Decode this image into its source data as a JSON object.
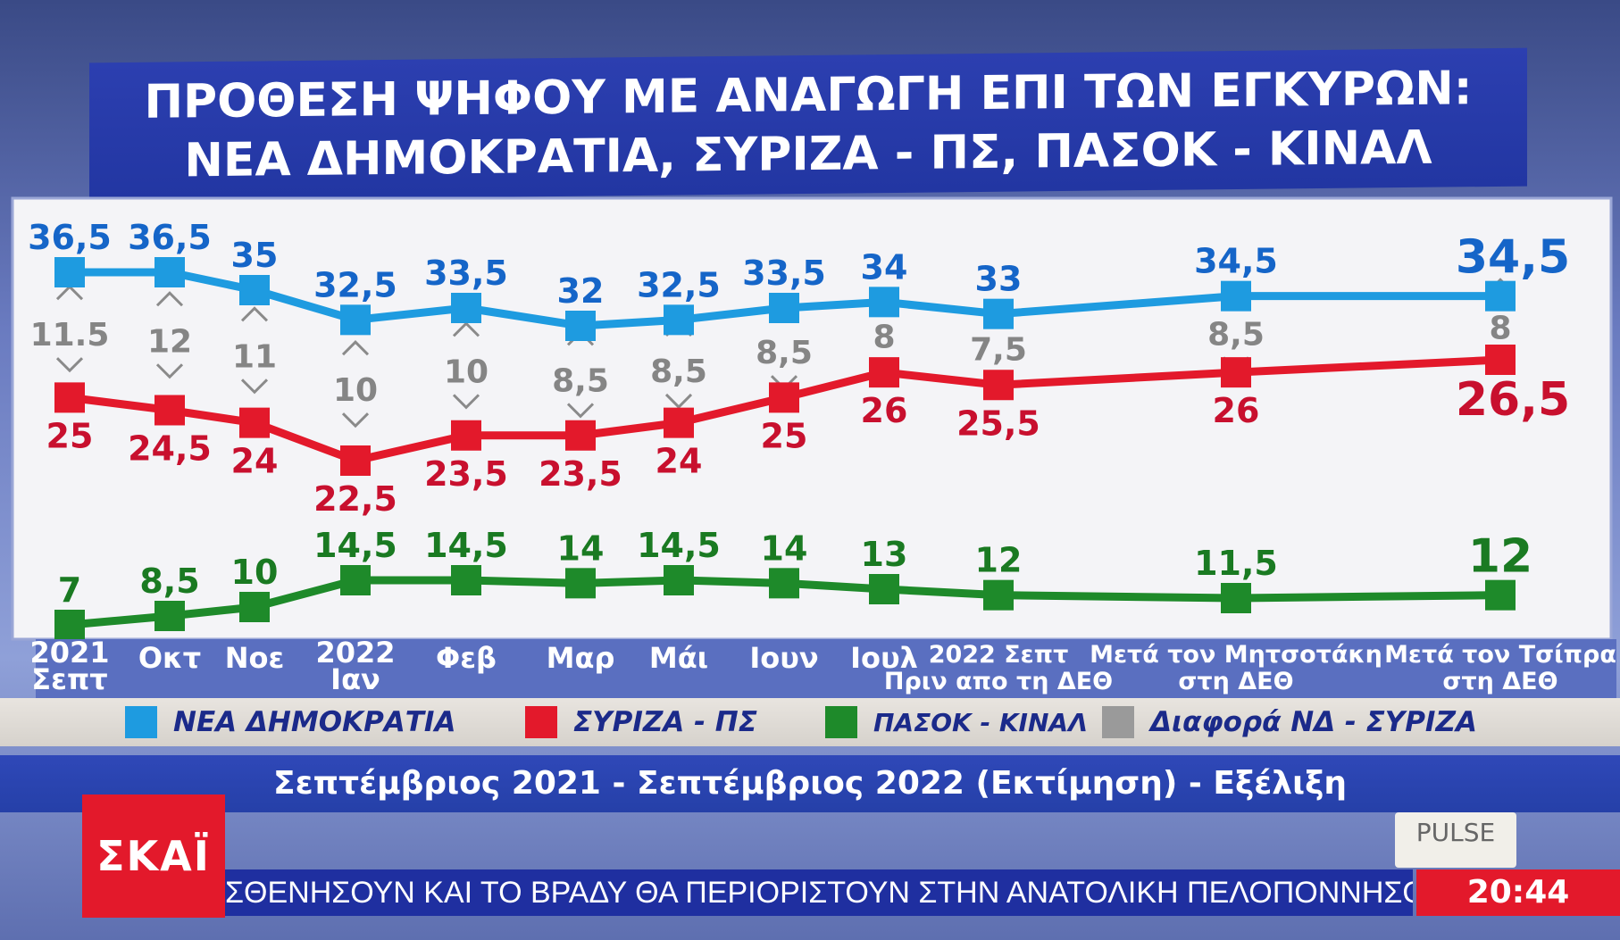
{
  "title": {
    "line1": "ΠΡΟΘΕΣΗ ΨΗΦΟΥ ΜΕ ΑΝΑΓΩΓΗ ΕΠΙ ΤΩΝ ΕΓΚΥΡΩΝ:",
    "line2": "ΝΕΑ ΔΗΜΟΚΡΑΤΙΑ, ΣΥΡΙΖΑ - ΠΣ, ΠΑΣΟΚ - ΚΙΝΑΛ"
  },
  "subtitle": "Σεπτέμβριος 2021 - Σεπτέμβριος 2022 (Εκτίμηση) - Εξέλιξη",
  "broadcast": {
    "logo": "ΣΚΑΪ",
    "pollster": "PULSE",
    "ticker": "ΣΘΕΝΗΣΟΥΝ ΚΑΙ ΤΟ ΒΡΑΔΥ ΘΑ ΠΕΡΙΟΡΙΣΤΟΥΝ ΣΤΗΝ ΑΝΑΤΟΛΙΚΗ ΠΕΛΟΠΟΝΝΗΣΟ, ΤΙΣ ΚΥΚΛΑ",
    "clock": "20:44"
  },
  "colors": {
    "nd": "#1e9be0",
    "syriza": "#e3192b",
    "pasok": "#1e8a2a",
    "diff": "#9a9a9a"
  },
  "chart_data": {
    "type": "line",
    "categories": [
      [
        "2021",
        "Σεπτ"
      ],
      [
        "Οκτ"
      ],
      [
        "Νοε"
      ],
      [
        "2022",
        "Ιαν"
      ],
      [
        "Φεβ"
      ],
      [
        "Μαρ"
      ],
      [
        "Μάι"
      ],
      [
        "Ιουν"
      ],
      [
        "Ιουλ"
      ],
      [
        "2022 Σεπτ",
        "Πριν απο τη ΔΕΘ"
      ],
      [
        "Μετά τον Μητσοτάκη",
        "στη ΔΕΘ"
      ],
      [
        "Μετά τον Τσίπρα",
        "στη ΔΕΘ"
      ]
    ],
    "series": [
      {
        "name": "ΝΕΑ ΔΗΜΟΚΡΑΤΙΑ",
        "key": "nd",
        "values": [
          36.5,
          36.5,
          35,
          32.5,
          33.5,
          32,
          32.5,
          33.5,
          34,
          33,
          34.5,
          34.5
        ],
        "labels": [
          "36,5",
          "36,5",
          "35",
          "32,5",
          "33,5",
          "32",
          "32,5",
          "33,5",
          "34",
          "33",
          "34,5",
          "34,5"
        ]
      },
      {
        "name": "ΣΥΡΙΖΑ - ΠΣ",
        "key": "syriza",
        "values": [
          25,
          24.5,
          24,
          22.5,
          23.5,
          23.5,
          24,
          25,
          26,
          25.5,
          26,
          26.5
        ],
        "labels": [
          "25",
          "24,5",
          "24",
          "22,5",
          "23,5",
          "23,5",
          "24",
          "25",
          "26",
          "25,5",
          "26",
          "26,5"
        ]
      },
      {
        "name": "ΠΑΣΟΚ - ΚΙΝΑΛ",
        "key": "pasok",
        "values": [
          7,
          8.5,
          10,
          14.5,
          14.5,
          14,
          14.5,
          14,
          13,
          12,
          11.5,
          12
        ],
        "labels": [
          "7",
          "8,5",
          "10",
          "14,5",
          "14,5",
          "14",
          "14,5",
          "14",
          "13",
          "12",
          "11,5",
          "12"
        ]
      }
    ],
    "difference": {
      "name": "Διαφορά ΝΔ - ΣΥΡΙΖΑ",
      "values": [
        11.5,
        12,
        11,
        10,
        10,
        8.5,
        8.5,
        8.5,
        8,
        7.5,
        8.5,
        8
      ],
      "labels": [
        "11.5",
        "12",
        "11",
        "10",
        "10",
        "8,5",
        "8,5",
        "8,5",
        "8",
        "7,5",
        "8,5",
        "8"
      ]
    },
    "legend_position": "bottom",
    "grid": false
  }
}
